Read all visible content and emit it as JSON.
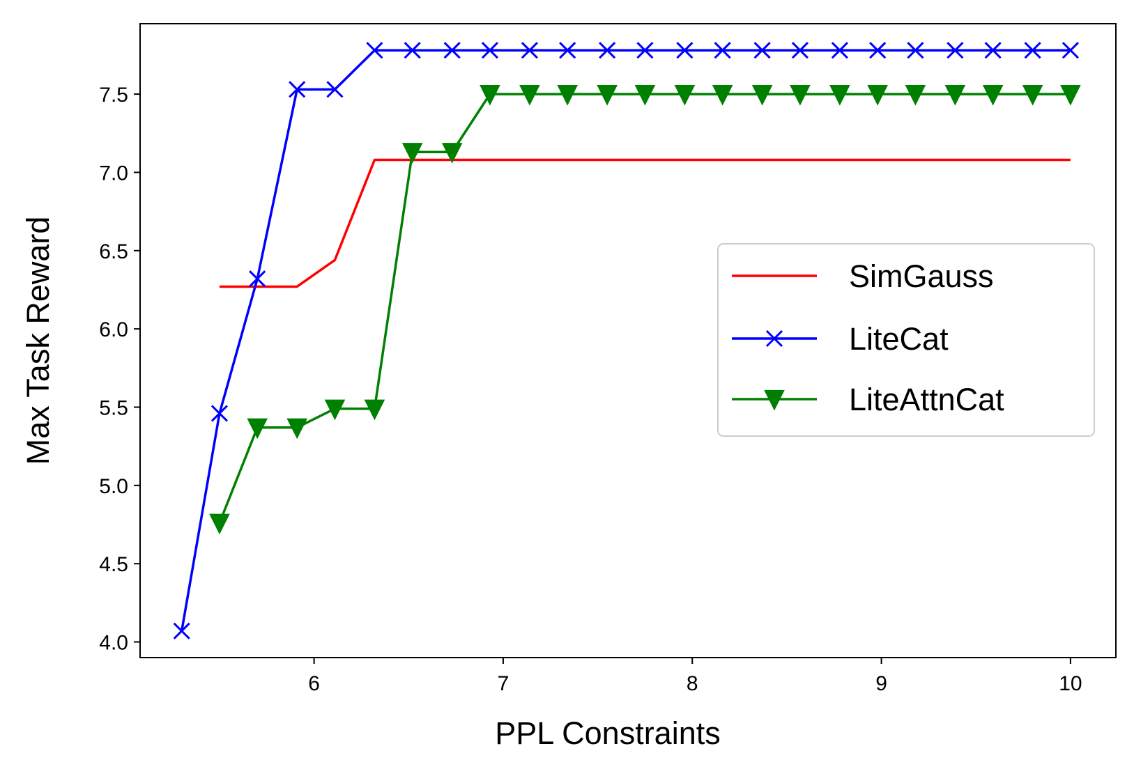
{
  "chart_data": {
    "type": "line",
    "title": "",
    "xlabel": "PPL Constraints",
    "ylabel": "Max Task Reward",
    "xlim": [
      5.08,
      10.24
    ],
    "ylim": [
      3.9,
      7.95
    ],
    "xticks": [
      6,
      7,
      8,
      9,
      10
    ],
    "xtick_labels": [
      "6",
      "7",
      "8",
      "9",
      "10"
    ],
    "yticks": [
      4.0,
      4.5,
      5.0,
      5.5,
      6.0,
      6.5,
      7.0,
      7.5
    ],
    "ytick_labels": [
      "4.0",
      "4.5",
      "5.0",
      "5.5",
      "6.0",
      "6.5",
      "7.0",
      "7.5"
    ],
    "grid": false,
    "legend_position": "center-right",
    "series": [
      {
        "name": "SimGauss",
        "color": "#ff0000",
        "marker": "none",
        "x": [
          5.5,
          5.7,
          5.91,
          6.11,
          6.32,
          6.52,
          6.73,
          6.93,
          7.14,
          7.34,
          7.55,
          7.75,
          7.96,
          8.16,
          8.37,
          8.57,
          8.78,
          8.98,
          9.18,
          9.39,
          9.59,
          9.8,
          10.0
        ],
        "values": [
          6.27,
          6.27,
          6.27,
          6.44,
          7.08,
          7.08,
          7.08,
          7.08,
          7.08,
          7.08,
          7.08,
          7.08,
          7.08,
          7.08,
          7.08,
          7.08,
          7.08,
          7.08,
          7.08,
          7.08,
          7.08,
          7.08,
          7.08
        ]
      },
      {
        "name": "LiteCat",
        "color": "#0000ff",
        "marker": "x",
        "x": [
          5.3,
          5.5,
          5.7,
          5.91,
          6.11,
          6.32,
          6.52,
          6.73,
          6.93,
          7.14,
          7.34,
          7.55,
          7.75,
          7.96,
          8.16,
          8.37,
          8.57,
          8.78,
          8.98,
          9.18,
          9.39,
          9.59,
          9.8,
          10.0
        ],
        "values": [
          4.07,
          5.46,
          6.32,
          7.53,
          7.53,
          7.78,
          7.78,
          7.78,
          7.78,
          7.78,
          7.78,
          7.78,
          7.78,
          7.78,
          7.78,
          7.78,
          7.78,
          7.78,
          7.78,
          7.78,
          7.78,
          7.78,
          7.78,
          7.78
        ]
      },
      {
        "name": "LiteAttnCat",
        "color": "#008000",
        "marker": "triangle-down",
        "x": [
          5.5,
          5.7,
          5.91,
          6.11,
          6.32,
          6.52,
          6.73,
          6.93,
          7.14,
          7.34,
          7.55,
          7.75,
          7.96,
          8.16,
          8.37,
          8.57,
          8.78,
          8.98,
          9.18,
          9.39,
          9.59,
          9.8,
          10.0
        ],
        "values": [
          4.76,
          5.37,
          5.37,
          5.49,
          5.49,
          7.13,
          7.13,
          7.5,
          7.5,
          7.5,
          7.5,
          7.5,
          7.5,
          7.5,
          7.5,
          7.5,
          7.5,
          7.5,
          7.5,
          7.5,
          7.5,
          7.5,
          7.5
        ]
      }
    ]
  }
}
